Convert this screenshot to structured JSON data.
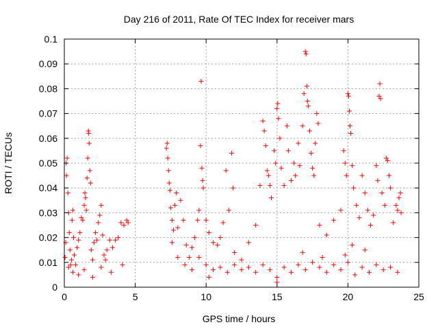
{
  "chart_data": {
    "type": "scatter",
    "title": "Day 216 of 2011, Rate Of TEC Index for receiver mars",
    "xlabel": "GPS time / hours",
    "ylabel": "ROTI / TECUs",
    "xlim": [
      0,
      25
    ],
    "ylim": [
      0,
      0.1
    ],
    "xticks": [
      0,
      5,
      10,
      15,
      20,
      25
    ],
    "yticks": [
      0,
      0.01,
      0.02,
      0.03,
      0.04,
      0.05,
      0.06,
      0.07,
      0.08,
      0.09,
      0.1
    ],
    "xtick_labels": [
      "0",
      "5",
      "10",
      "15",
      "20",
      "25"
    ],
    "ytick_labels": [
      "0",
      "0.01",
      "0.02",
      "0.03",
      "0.04",
      "0.05",
      "0.06",
      "0.07",
      "0.08",
      "0.09",
      "0.1"
    ],
    "grid": true,
    "marker": "+",
    "color": "#ff0000",
    "series": [
      {
        "points": [
          [
            0.05,
            0.012
          ],
          [
            0.1,
            0.018
          ],
          [
            0.12,
            0.05
          ],
          [
            0.15,
            0.045
          ],
          [
            0.2,
            0.052
          ],
          [
            0.25,
            0.038
          ],
          [
            0.3,
            0.03
          ],
          [
            0.35,
            0.022
          ],
          [
            0.4,
            0.015
          ],
          [
            0.45,
            0.009
          ],
          [
            0.5,
            0.011
          ],
          [
            0.55,
            0.027
          ],
          [
            0.6,
            0.031
          ],
          [
            0.65,
            0.02
          ],
          [
            0.7,
            0.013
          ],
          [
            0.8,
            0.009
          ],
          [
            0.9,
            0.016
          ],
          [
            1.0,
            0.019
          ],
          [
            1.1,
            0.022
          ],
          [
            1.2,
            0.028
          ],
          [
            1.3,
            0.027
          ],
          [
            1.4,
            0.033
          ],
          [
            1.45,
            0.038
          ],
          [
            1.5,
            0.036
          ],
          [
            1.55,
            0.031
          ],
          [
            1.6,
            0.044
          ],
          [
            1.65,
            0.052
          ],
          [
            1.7,
            0.063
          ],
          [
            1.72,
            0.062
          ],
          [
            1.75,
            0.058
          ],
          [
            1.8,
            0.047
          ],
          [
            1.85,
            0.042
          ],
          [
            1.9,
            0.015
          ],
          [
            2.0,
            0.011
          ],
          [
            2.1,
            0.018
          ],
          [
            2.2,
            0.022
          ],
          [
            2.3,
            0.019
          ],
          [
            2.4,
            0.026
          ],
          [
            2.5,
            0.029
          ],
          [
            2.6,
            0.033
          ],
          [
            2.7,
            0.021
          ],
          [
            2.8,
            0.013
          ],
          [
            2.9,
            0.011
          ],
          [
            3.0,
            0.015
          ],
          [
            3.2,
            0.019
          ],
          [
            3.4,
            0.016
          ],
          [
            3.6,
            0.019
          ],
          [
            3.8,
            0.02
          ],
          [
            4.0,
            0.026
          ],
          [
            4.2,
            0.025
          ],
          [
            4.4,
            0.027
          ],
          [
            4.5,
            0.026
          ],
          [
            0.3,
            0.008
          ],
          [
            0.6,
            0.006
          ],
          [
            1.0,
            0.005
          ],
          [
            1.4,
            0.007
          ],
          [
            2.0,
            0.004
          ],
          [
            2.6,
            0.008
          ],
          [
            3.3,
            0.006
          ],
          [
            4.1,
            0.009
          ],
          [
            7.2,
            0.056
          ],
          [
            7.25,
            0.058
          ],
          [
            7.3,
            0.052
          ],
          [
            7.35,
            0.047
          ],
          [
            7.4,
            0.042
          ],
          [
            7.45,
            0.039
          ],
          [
            7.5,
            0.032
          ],
          [
            7.6,
            0.027
          ],
          [
            7.7,
            0.023
          ],
          [
            7.8,
            0.033
          ],
          [
            7.9,
            0.038
          ],
          [
            8.0,
            0.024
          ],
          [
            8.2,
            0.035
          ],
          [
            8.4,
            0.027
          ],
          [
            8.6,
            0.017
          ],
          [
            8.8,
            0.012
          ],
          [
            9.0,
            0.016
          ],
          [
            9.2,
            0.02
          ],
          [
            9.4,
            0.027
          ],
          [
            9.5,
            0.031
          ],
          [
            9.6,
            0.057
          ],
          [
            9.65,
            0.083
          ],
          [
            9.7,
            0.048
          ],
          [
            9.75,
            0.043
          ],
          [
            9.8,
            0.04
          ],
          [
            10.0,
            0.027
          ],
          [
            10.2,
            0.022
          ],
          [
            10.5,
            0.018
          ],
          [
            10.8,
            0.017
          ],
          [
            11.0,
            0.02
          ],
          [
            11.2,
            0.026
          ],
          [
            11.4,
            0.047
          ],
          [
            11.6,
            0.031
          ],
          [
            11.8,
            0.054
          ],
          [
            11.9,
            0.04
          ],
          [
            12.0,
            0.014
          ],
          [
            12.5,
            0.011
          ],
          [
            13.0,
            0.018
          ],
          [
            13.5,
            0.025
          ],
          [
            13.8,
            0.041
          ],
          [
            14.0,
            0.067
          ],
          [
            14.1,
            0.063
          ],
          [
            14.2,
            0.057
          ],
          [
            14.3,
            0.047
          ],
          [
            14.4,
            0.045
          ],
          [
            14.5,
            0.041
          ],
          [
            14.6,
            0.036
          ],
          [
            14.8,
            0.055
          ],
          [
            14.9,
            0.05
          ],
          [
            15.0,
            0.072
          ],
          [
            15.05,
            0.074
          ],
          [
            15.1,
            0.068
          ],
          [
            15.2,
            0.06
          ],
          [
            15.3,
            0.048
          ],
          [
            15.5,
            0.041
          ],
          [
            15.7,
            0.065
          ],
          [
            15.8,
            0.055
          ],
          [
            16.0,
            0.043
          ],
          [
            16.2,
            0.05
          ],
          [
            16.3,
            0.045
          ],
          [
            16.5,
            0.058
          ],
          [
            16.6,
            0.049
          ],
          [
            16.8,
            0.065
          ],
          [
            16.9,
            0.078
          ],
          [
            17.0,
            0.095
          ],
          [
            17.05,
            0.094
          ],
          [
            17.1,
            0.081
          ],
          [
            17.15,
            0.075
          ],
          [
            17.2,
            0.073
          ],
          [
            17.3,
            0.063
          ],
          [
            17.4,
            0.054
          ],
          [
            17.5,
            0.048
          ],
          [
            17.6,
            0.045
          ],
          [
            17.7,
            0.058
          ],
          [
            17.8,
            0.07
          ],
          [
            17.9,
            0.066
          ],
          [
            18.0,
            0.025
          ],
          [
            18.5,
            0.021
          ],
          [
            19.0,
            0.027
          ],
          [
            19.5,
            0.031
          ],
          [
            19.7,
            0.055
          ],
          [
            19.8,
            0.05
          ],
          [
            19.9,
            0.045
          ],
          [
            20.0,
            0.078
          ],
          [
            20.05,
            0.077
          ],
          [
            20.1,
            0.071
          ],
          [
            20.15,
            0.065
          ],
          [
            20.2,
            0.062
          ],
          [
            20.3,
            0.049
          ],
          [
            20.4,
            0.04
          ],
          [
            20.6,
            0.033
          ],
          [
            20.8,
            0.028
          ],
          [
            21.0,
            0.045
          ],
          [
            21.2,
            0.038
          ],
          [
            21.4,
            0.031
          ],
          [
            21.6,
            0.025
          ],
          [
            21.8,
            0.029
          ],
          [
            22.0,
            0.049
          ],
          [
            22.1,
            0.043
          ],
          [
            22.2,
            0.077
          ],
          [
            22.25,
            0.082
          ],
          [
            22.3,
            0.076
          ],
          [
            22.4,
            0.038
          ],
          [
            22.6,
            0.033
          ],
          [
            22.7,
            0.052
          ],
          [
            22.8,
            0.051
          ],
          [
            22.9,
            0.045
          ],
          [
            23.0,
            0.04
          ],
          [
            23.2,
            0.026
          ],
          [
            23.4,
            0.033
          ],
          [
            23.5,
            0.031
          ],
          [
            23.6,
            0.036
          ],
          [
            23.7,
            0.038
          ],
          [
            23.75,
            0.03
          ],
          [
            7.6,
            0.018
          ],
          [
            8.0,
            0.012
          ],
          [
            8.5,
            0.009
          ],
          [
            9.0,
            0.007
          ],
          [
            9.5,
            0.012
          ],
          [
            10.0,
            0.009
          ],
          [
            10.5,
            0.007
          ],
          [
            11.0,
            0.008
          ],
          [
            11.5,
            0.006
          ],
          [
            12.0,
            0.009
          ],
          [
            12.5,
            0.007
          ],
          [
            13.0,
            0.008
          ],
          [
            13.5,
            0.006
          ],
          [
            14.0,
            0.009
          ],
          [
            14.5,
            0.007
          ],
          [
            15.0,
            0.004
          ],
          [
            15.5,
            0.008
          ],
          [
            16.0,
            0.006
          ],
          [
            16.5,
            0.009
          ],
          [
            17.0,
            0.007
          ],
          [
            17.5,
            0.01
          ],
          [
            18.0,
            0.008
          ],
          [
            18.5,
            0.006
          ],
          [
            19.0,
            0.009
          ],
          [
            19.5,
            0.007
          ],
          [
            20.0,
            0.01
          ],
          [
            20.5,
            0.005
          ],
          [
            21.0,
            0.008
          ],
          [
            21.5,
            0.006
          ],
          [
            22.0,
            0.009
          ],
          [
            22.5,
            0.007
          ],
          [
            23.0,
            0.008
          ],
          [
            23.5,
            0.006
          ],
          [
            10.2,
            0.004
          ],
          [
            15.0,
            0.002
          ],
          [
            19.8,
            0.013
          ],
          [
            20.3,
            0.017
          ],
          [
            21.2,
            0.015
          ],
          [
            18.2,
            0.012
          ],
          [
            16.8,
            0.014
          ]
        ]
      }
    ]
  }
}
